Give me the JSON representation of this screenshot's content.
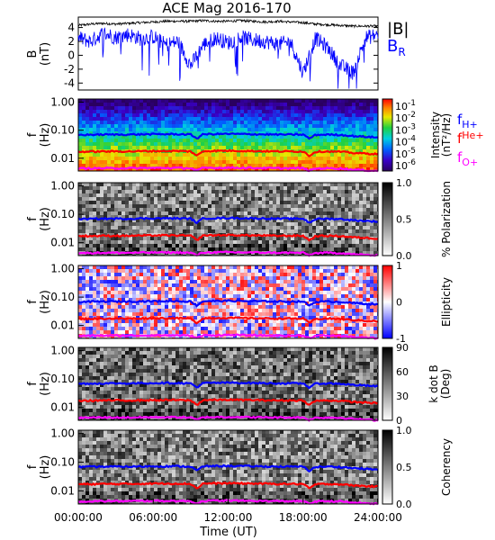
{
  "title": "ACE Mag 2016-170",
  "chart_data": [
    {
      "type": "line",
      "panel": "magnetic-field",
      "ylabel_main": "B",
      "ylabel_unit": "(nT)",
      "ylim": [
        -5,
        5.5
      ],
      "yticks": [
        "4",
        "2",
        "0",
        "-2",
        "-4"
      ],
      "ytick_values": [
        4,
        2,
        0,
        -2,
        -4
      ],
      "legend": [
        {
          "label": "|B|",
          "color": "#000000"
        },
        {
          "label": "B",
          "sub": "R",
          "color": "#0000ff"
        }
      ],
      "series": [
        {
          "name": "|B|",
          "color": "#000000",
          "x": [
            0,
            1,
            2,
            3,
            4,
            5,
            6,
            7,
            8,
            9,
            10,
            11,
            12,
            13,
            14,
            15,
            16,
            17,
            18,
            19,
            20,
            21,
            22,
            23,
            24
          ],
          "values": [
            4.3,
            4.5,
            4.6,
            4.5,
            4.6,
            4.7,
            4.8,
            4.9,
            4.9,
            4.9,
            5.0,
            4.9,
            4.9,
            5.0,
            4.9,
            4.8,
            4.9,
            4.8,
            4.7,
            4.5,
            4.4,
            4.3,
            4.2,
            4.2,
            4.2
          ]
        },
        {
          "name": "B_R",
          "color": "#0000ff",
          "x": [
            0,
            1,
            2,
            3,
            4,
            5,
            6,
            7,
            8,
            9,
            10,
            11,
            12,
            13,
            14,
            15,
            16,
            17,
            18,
            19,
            20,
            21,
            22,
            23,
            24
          ],
          "values": [
            2.5,
            2.0,
            3.2,
            2.6,
            3.0,
            2.4,
            2.7,
            1.5,
            2.0,
            -1.5,
            1.5,
            2.5,
            1.8,
            2.6,
            2.2,
            2.0,
            1.6,
            1.9,
            -2.5,
            2.5,
            1.0,
            -1.5,
            -2.5,
            2.5,
            3.0
          ]
        }
      ]
    },
    {
      "type": "heatmap",
      "panel": "intensity",
      "ylabel_main": "f",
      "ylabel_unit": "(Hz)",
      "yticks": [
        "1.00",
        "0.10",
        "0.01"
      ],
      "ytick_values": [
        1.0,
        0.1,
        0.01
      ],
      "ylim": [
        0.0035,
        1.3
      ],
      "yscale": "log",
      "colorbar": {
        "labels": [
          "10",
          "10",
          "10",
          "10",
          "10",
          "10"
        ],
        "exponents": [
          "-1",
          "-2",
          "-3",
          "-4",
          "-5",
          "-6"
        ],
        "title_line1": "Intensity",
        "title_line2": "(nT²/Hz)",
        "colormap": "rainbow"
      },
      "freq_legend": [
        {
          "main": "f",
          "sub": "H+",
          "color": "#0000ff"
        },
        {
          "main": "f",
          "sup": "He+",
          "color": "#ff0000"
        },
        {
          "main": "f",
          "sub": "O+",
          "color": "#ff00ff"
        }
      ]
    },
    {
      "type": "heatmap",
      "panel": "polarization",
      "ylabel_main": "f",
      "ylabel_unit": "(Hz)",
      "yticks": [
        "1.00",
        "0.10",
        "0.01"
      ],
      "ytick_values": [
        1.0,
        0.1,
        0.01
      ],
      "yscale": "log",
      "colorbar": {
        "labels": [
          "1.0",
          "0.5",
          "0.0"
        ],
        "values": [
          1.0,
          0.5,
          0.0
        ],
        "title": "% Polarization",
        "colormap": "gray"
      }
    },
    {
      "type": "heatmap",
      "panel": "ellipticity",
      "ylabel_main": "f",
      "ylabel_unit": "(Hz)",
      "yticks": [
        "1.00",
        "0.10",
        "0.01"
      ],
      "ytick_values": [
        1.0,
        0.1,
        0.01
      ],
      "yscale": "log",
      "colorbar": {
        "labels": [
          "1",
          "0",
          "-1"
        ],
        "values": [
          1,
          0,
          -1
        ],
        "title": "Ellipticity",
        "colormap": "blue-white-red"
      }
    },
    {
      "type": "heatmap",
      "panel": "kdotb",
      "ylabel_main": "f",
      "ylabel_unit": "(Hz)",
      "yticks": [
        "1.00",
        "0.10",
        "0.01"
      ],
      "ytick_values": [
        1.0,
        0.1,
        0.01
      ],
      "yscale": "log",
      "colorbar": {
        "labels": [
          "90",
          "60",
          "30",
          "0"
        ],
        "values": [
          90,
          60,
          30,
          0
        ],
        "title_line1": "k dot B",
        "title_line2": "(Deg)",
        "colormap": "gray"
      }
    },
    {
      "type": "heatmap",
      "panel": "coherency",
      "ylabel_main": "f",
      "ylabel_unit": "(Hz)",
      "yticks": [
        "1.00",
        "0.10",
        "0.01"
      ],
      "ytick_values": [
        1.0,
        0.1,
        0.01
      ],
      "yscale": "log",
      "colorbar": {
        "labels": [
          "1.0",
          "0.5",
          "0.0"
        ],
        "values": [
          1.0,
          0.5,
          0.0
        ],
        "title": "Coherency",
        "colormap": "gray"
      }
    }
  ],
  "gyro_lines": {
    "x": [
      0,
      2,
      4,
      6,
      8,
      9,
      9.5,
      10,
      12,
      14,
      16,
      18,
      18.5,
      19,
      20,
      21,
      22,
      24
    ],
    "H+": [
      0.068,
      0.07,
      0.07,
      0.072,
      0.072,
      0.07,
      0.05,
      0.072,
      0.074,
      0.072,
      0.07,
      0.07,
      0.05,
      0.068,
      0.07,
      0.068,
      0.062,
      0.055
    ],
    "He+": [
      0.017,
      0.0175,
      0.0175,
      0.018,
      0.018,
      0.0175,
      0.012,
      0.018,
      0.0185,
      0.018,
      0.0175,
      0.0175,
      0.012,
      0.017,
      0.0175,
      0.017,
      0.0155,
      0.014
    ],
    "O+": [
      0.0043,
      0.0044,
      0.0044,
      0.0045,
      0.0045,
      0.0044,
      0.0036,
      0.0045,
      0.0046,
      0.0045,
      0.0044,
      0.0044,
      0.0036,
      0.0043,
      0.0044,
      0.0043,
      0.0039,
      0.0035
    ]
  },
  "x_axis": {
    "ticks": [
      "00:00:00",
      "06:00:00",
      "12:00:00",
      "18:00:00",
      "24:00:00"
    ],
    "tick_hours": [
      0,
      6,
      12,
      18,
      24
    ],
    "label": "Time (UT)"
  },
  "colors": {
    "h_plus": "#0000ff",
    "he_plus": "#ff0000",
    "o_plus": "#ff00ff",
    "b_total": "#000000",
    "b_r": "#0000ff"
  }
}
